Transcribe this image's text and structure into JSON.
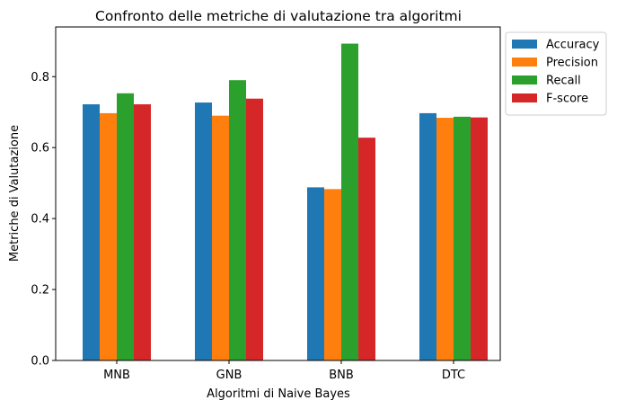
{
  "chart_data": {
    "type": "bar",
    "title": "Confronto delle metriche di valutazione tra algoritmi",
    "xlabel": "Algoritmi di Naive Bayes",
    "ylabel": "Metriche di Valutazione",
    "categories": [
      "MNB",
      "GNB",
      "BNB",
      "DTC"
    ],
    "series": [
      {
        "name": "Accuracy",
        "color": "#1f77b4",
        "values": [
          0.722,
          0.727,
          0.488,
          0.697
        ]
      },
      {
        "name": "Precision",
        "color": "#ff7f0e",
        "values": [
          0.697,
          0.69,
          0.483,
          0.684
        ]
      },
      {
        "name": "Recall",
        "color": "#2ca02c",
        "values": [
          0.753,
          0.79,
          0.893,
          0.687
        ]
      },
      {
        "name": "F-score",
        "color": "#d62728",
        "values": [
          0.722,
          0.738,
          0.628,
          0.685
        ]
      }
    ],
    "ylim": [
      0,
      0.94
    ],
    "yticks": [
      0.0,
      0.2,
      0.4,
      0.6,
      0.8
    ],
    "ytick_labels": [
      "0.0",
      "0.2",
      "0.4",
      "0.6",
      "0.8"
    ],
    "grid": false,
    "legend_position": "outside-top-right"
  }
}
